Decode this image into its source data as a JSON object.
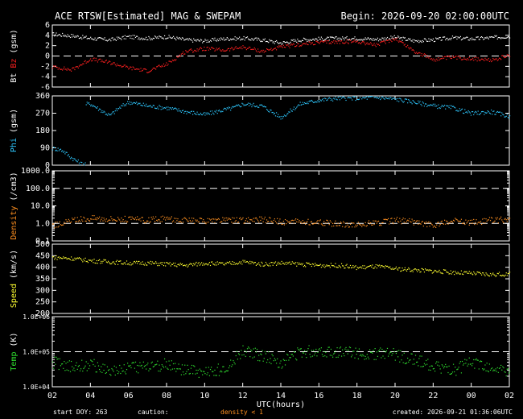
{
  "header": {
    "title": "ACE RTSW[Estimated] MAG & SWEPAM",
    "begin": "Begin: 2026-09-20 02:00:00UTC"
  },
  "footer": {
    "start_doy": "start DOY: 263",
    "caution": "caution:",
    "density_note": "density < 1",
    "created": "created: 2026-09-21 01:36:06UTC"
  },
  "xaxis": {
    "label": "UTC(hours)",
    "ticks": [
      "02",
      "04",
      "06",
      "08",
      "10",
      "12",
      "14",
      "16",
      "18",
      "20",
      "22",
      "00",
      "02"
    ],
    "range_hours": [
      0,
      24
    ]
  },
  "colors": {
    "bt": "#ffffff",
    "bz": "#ff2020",
    "phi": "#2ec8ff",
    "density": "#ff9020",
    "speed": "#ffff30",
    "temp": "#30e030",
    "axis": "#ffffff",
    "dash": "#ffffff"
  },
  "chart_data": [
    {
      "type": "scatter",
      "name_panel": "mag",
      "ylabel_parts": [
        "Bt",
        "Bz",
        "(gsm)"
      ],
      "ylim": [
        -6,
        6
      ],
      "yticks": [
        "6",
        "4",
        "2",
        "0",
        "-2",
        "-4",
        "-6"
      ],
      "ytick_values": [
        6,
        4,
        2,
        0,
        -2,
        -4,
        -6
      ],
      "reference_line": 0,
      "series": [
        {
          "name": "Bt",
          "x": [
            0,
            1,
            2,
            3,
            4,
            5,
            6,
            7,
            8,
            9,
            10,
            11,
            12,
            13,
            14,
            15,
            16,
            17,
            18,
            19,
            20,
            21,
            22,
            23,
            24
          ],
          "values": [
            4.3,
            4.0,
            3.5,
            3.2,
            3.8,
            3.5,
            3.8,
            3.2,
            3.0,
            3.4,
            3.5,
            3.2,
            2.6,
            3.2,
            3.4,
            3.5,
            3.5,
            3.3,
            3.7,
            3.0,
            3.2,
            3.6,
            3.4,
            3.6,
            3.9
          ]
        },
        {
          "name": "Bz",
          "x": [
            0,
            1,
            2,
            3,
            4,
            5,
            6,
            7,
            8,
            9,
            10,
            11,
            12,
            13,
            14,
            15,
            16,
            17,
            18,
            19,
            20,
            21,
            22,
            23,
            24
          ],
          "values": [
            -2.0,
            -2.6,
            -0.5,
            -1.2,
            -2.2,
            -2.8,
            -1.5,
            1.0,
            1.5,
            1.2,
            1.8,
            1.0,
            1.8,
            2.3,
            2.7,
            2.8,
            2.9,
            2.2,
            3.5,
            1.0,
            -0.6,
            -0.2,
            -0.4,
            -0.8,
            0.2
          ]
        }
      ]
    },
    {
      "type": "scatter",
      "name_panel": "phi",
      "ylabel_parts": [
        "Phi",
        "(gsm)"
      ],
      "ylim": [
        0,
        360
      ],
      "yticks": [
        "360",
        "270",
        "180",
        "90",
        "0"
      ],
      "ytick_values": [
        360,
        270,
        180,
        90,
        0
      ],
      "series": [
        {
          "name": "Phi",
          "x": [
            0,
            0.5,
            1,
            1.5,
            2,
            2.5,
            3,
            3.5,
            4,
            5,
            6,
            7,
            8,
            9,
            9.5,
            10,
            11,
            12,
            13,
            14,
            15,
            16,
            17,
            18,
            19,
            20,
            21,
            22,
            23,
            24
          ],
          "values": [
            90,
            80,
            40,
            10,
            320,
            290,
            260,
            300,
            330,
            310,
            300,
            280,
            265,
            290,
            300,
            320,
            310,
            250,
            320,
            340,
            350,
            350,
            355,
            345,
            330,
            310,
            300,
            270,
            280,
            255
          ]
        }
      ]
    },
    {
      "type": "scatter",
      "name_panel": "density",
      "ylabel_parts": [
        "Density",
        "(/cm3)"
      ],
      "yscale": "log",
      "ylim": [
        0.1,
        1000
      ],
      "yticks": [
        "1000.0",
        "100.0",
        "10.0",
        "1.0",
        "0.1"
      ],
      "ytick_values": [
        1000,
        100,
        10,
        1,
        0.1
      ],
      "reference_lines": [
        100,
        1
      ],
      "series": [
        {
          "name": "Density",
          "x": [
            0,
            1,
            2,
            3,
            4,
            5,
            6,
            7,
            8,
            9,
            10,
            11,
            12,
            13,
            14,
            15,
            16,
            17,
            18,
            19,
            20,
            21,
            22,
            23,
            24
          ],
          "values": [
            0.8,
            1.5,
            2.2,
            2.0,
            1.8,
            1.6,
            2.0,
            1.5,
            1.4,
            1.6,
            1.5,
            1.8,
            1.3,
            1.4,
            1.2,
            1.0,
            0.9,
            1.1,
            1.6,
            1.3,
            0.8,
            1.5,
            1.2,
            1.6,
            1.8
          ]
        }
      ]
    },
    {
      "type": "scatter",
      "name_panel": "speed",
      "ylabel_parts": [
        "Speed",
        "(km/s)"
      ],
      "ylim": [
        200,
        500
      ],
      "yticks": [
        "500",
        "450",
        "400",
        "350",
        "300",
        "250",
        "200"
      ],
      "ytick_values": [
        500,
        450,
        400,
        350,
        300,
        250,
        200
      ],
      "series": [
        {
          "name": "Speed",
          "x": [
            0,
            1,
            2,
            3,
            4,
            5,
            6,
            7,
            8,
            9,
            10,
            11,
            12,
            13,
            14,
            15,
            16,
            17,
            18,
            19,
            20,
            21,
            22,
            23,
            24
          ],
          "values": [
            445,
            440,
            430,
            425,
            420,
            420,
            415,
            410,
            420,
            415,
            425,
            415,
            420,
            415,
            410,
            410,
            400,
            405,
            395,
            390,
            385,
            380,
            375,
            370,
            372
          ]
        }
      ]
    },
    {
      "type": "scatter",
      "name_panel": "temp",
      "ylabel_parts": [
        "Temp",
        "(K)"
      ],
      "yscale": "log",
      "ylim": [
        10000,
        1000000
      ],
      "yticks": [
        "1.0E+06",
        "1.0E+05",
        "1.0E+04"
      ],
      "ytick_values": [
        1000000,
        100000,
        10000
      ],
      "reference_line": 100000,
      "series": [
        {
          "name": "Temp",
          "x": [
            0,
            1,
            2,
            3,
            4,
            5,
            6,
            7,
            8,
            9,
            10,
            11,
            12,
            13,
            14,
            15,
            16,
            17,
            18,
            19,
            20,
            21,
            22,
            23,
            24
          ],
          "values": [
            50000,
            40000,
            45000,
            30000,
            35000,
            40000,
            45000,
            30000,
            25000,
            35000,
            110000,
            80000,
            50000,
            100000,
            110000,
            100000,
            95000,
            90000,
            85000,
            60000,
            40000,
            30000,
            50000,
            35000,
            25000
          ]
        }
      ]
    }
  ]
}
